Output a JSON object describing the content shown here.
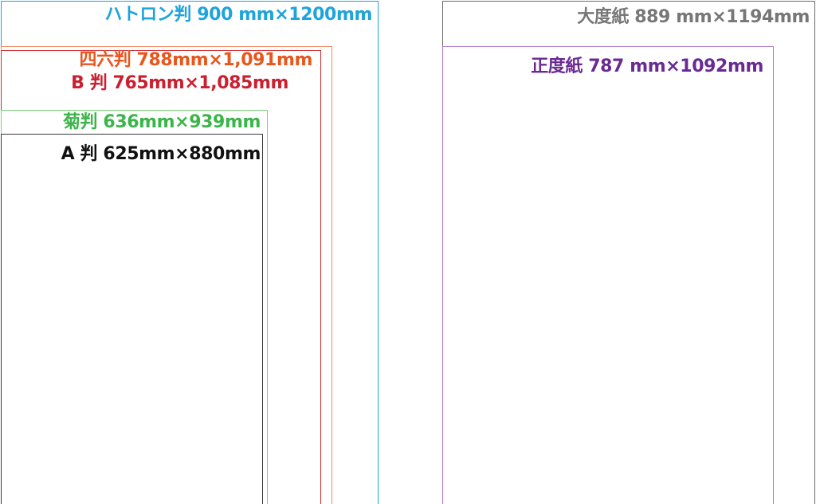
{
  "formats": {
    "hatoron": {
      "label": "ハトロン判 900 mm×1200mm",
      "color": "#1ea3dc"
    },
    "shiroku": {
      "label": "四六判 788mm×1,091mm",
      "color": "#e8561c"
    },
    "b": {
      "label": "B 判 765mm×1,085mm",
      "color": "#cc1e2e"
    },
    "kiku": {
      "label": "菊判 636mm×939mm",
      "color": "#3bb54a"
    },
    "a": {
      "label": "A 判 625mm×880mm",
      "color": "#111111"
    },
    "daidoshi": {
      "label": "大度紙 889 mm×1194mm",
      "color": "#777777"
    },
    "seidoshi": {
      "label": "正度紙 787 mm×1092mm",
      "color": "#6a2a92"
    }
  }
}
